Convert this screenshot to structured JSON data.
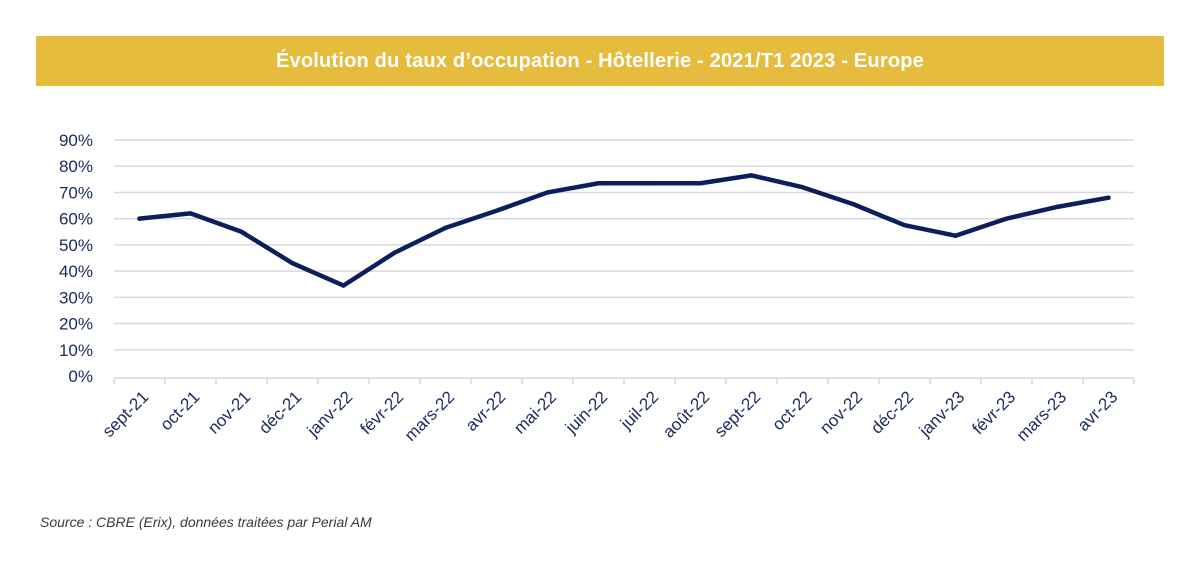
{
  "colors": {
    "banner": "#E6BC3E",
    "line": "#0C1F5C",
    "grid": "#D9D9D9",
    "axis_text": "#1B2A5E"
  },
  "chart_data": {
    "type": "line",
    "title": "Évolution du taux d’occupation - Hôtellerie - 2021/T1 2023 - Europe",
    "xlabel": "",
    "ylabel": "",
    "categories": [
      "sept-21",
      "oct-21",
      "nov-21",
      "déc-21",
      "janv-22",
      "févr-22",
      "mars-22",
      "avr-22",
      "mai-22",
      "juin-22",
      "juil-22",
      "août-22",
      "sept-22",
      "oct-22",
      "nov-22",
      "déc-22",
      "janv-23",
      "févr-23",
      "mars-23",
      "avr-23"
    ],
    "series": [
      {
        "values": [
          60,
          62,
          55,
          43,
          34.5,
          47,
          56.5,
          63,
          70,
          73.5,
          73.5,
          73.5,
          76.5,
          72,
          65.5,
          57.5,
          53.5,
          60,
          64.5,
          68
        ]
      }
    ],
    "ylim": [
      0,
      90
    ],
    "yticks": [
      "0%",
      "10%",
      "20%",
      "30%",
      "40%",
      "50%",
      "60%",
      "70%",
      "80%",
      "90%"
    ],
    "grid": true,
    "legend": "none"
  },
  "footer": {
    "source": "Source : CBRE (Erix), données traitées par Perial AM"
  }
}
